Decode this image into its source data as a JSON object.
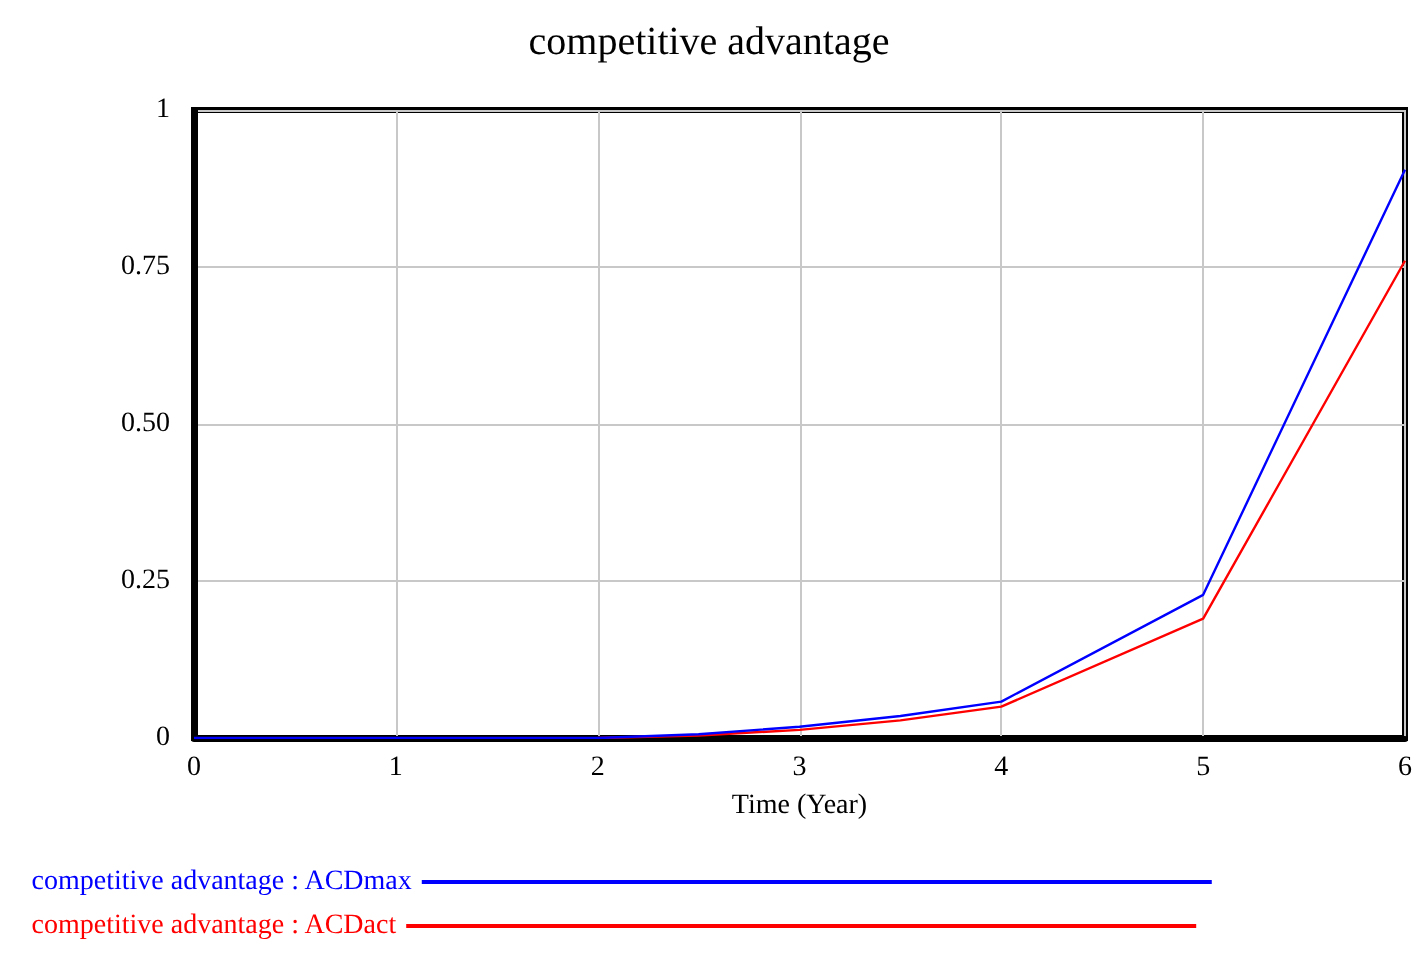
{
  "chart_data": {
    "type": "line",
    "title": "competitive advantage",
    "xlabel": "Time (Year)",
    "x": [
      0,
      1,
      2,
      2.5,
      3,
      3.5,
      4,
      5,
      6
    ],
    "series": [
      {
        "name": "competitive advantage : ACDmax",
        "color": "#0000ff",
        "values": [
          0,
          0,
          0,
          0.006,
          0.018,
          0.035,
          0.058,
          0.228,
          0.905
        ]
      },
      {
        "name": "competitive advantage : ACDact",
        "color": "#ff0000",
        "values": [
          null,
          null,
          0,
          0.004,
          0.013,
          0.028,
          0.05,
          0.19,
          0.76
        ]
      }
    ],
    "xlim": [
      0,
      6
    ],
    "xticks": [
      0,
      1,
      2,
      3,
      4,
      5,
      6
    ],
    "ylim": [
      0,
      1
    ],
    "yticks": [
      0,
      0.25,
      {
        "value": 0.5,
        "label": "0.50"
      },
      0.75,
      1
    ],
    "grid": true,
    "legend": "bottom",
    "marker": "none",
    "line_style": "solid"
  }
}
